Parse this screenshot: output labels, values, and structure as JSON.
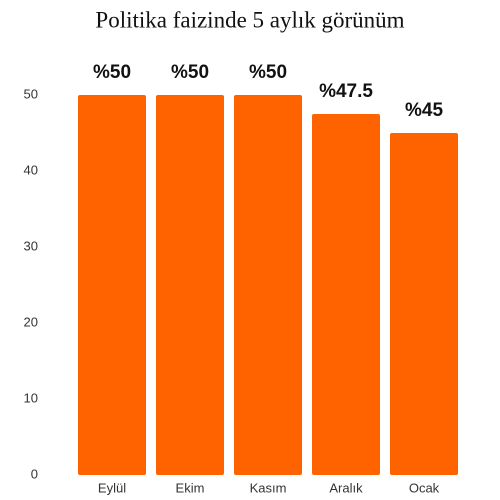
{
  "chart_data": {
    "type": "bar",
    "title": "Politika faizinde 5 aylık görünüm",
    "categories": [
      "Eylül",
      "Ekim",
      "Kasım",
      "Aralık",
      "Ocak"
    ],
    "values": [
      50,
      50,
      50,
      47.5,
      45
    ],
    "value_labels": [
      "%50",
      "%50",
      "%50",
      "%47.5",
      "%45"
    ],
    "color": "#ff6300",
    "ylim": [
      0,
      50
    ],
    "yticks": [
      0,
      10,
      20,
      30,
      40,
      50
    ],
    "grid": false
  }
}
